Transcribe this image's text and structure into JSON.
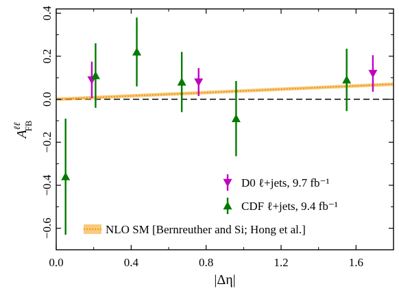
{
  "chart_data": {
    "type": "scatter",
    "xlabel": "|Δη|",
    "ylabel": "A",
    "ylabel_sup": "ℓℓ",
    "ylabel_sub": "FB",
    "xlim": [
      0.0,
      1.8
    ],
    "ylim": [
      -0.7,
      0.42
    ],
    "xticks": [
      0.0,
      0.4,
      0.8,
      1.2,
      1.6
    ],
    "xtick_labels": [
      "0.0",
      "0.4",
      "0.8",
      "1.2",
      "1.6"
    ],
    "yticks": [
      -0.6,
      -0.4,
      -0.2,
      0.0,
      0.2,
      0.4
    ],
    "ytick_labels": [
      "−0.6",
      "−0.4",
      "−0.2",
      "0.0",
      "0.2",
      "0.4"
    ],
    "grid": false,
    "reference_line": {
      "y": 0.0,
      "style": "dashed"
    },
    "legend_position": "lower-right",
    "series": [
      {
        "name": "D0 ℓ+jets, 9.7 fb⁻¹",
        "marker": "triangle-down",
        "color": "#c000c0",
        "points": [
          {
            "x": 0.19,
            "y": 0.09,
            "err": 0.085
          },
          {
            "x": 0.76,
            "y": 0.08,
            "err": 0.065
          },
          {
            "x": 1.69,
            "y": 0.12,
            "err": 0.085
          }
        ]
      },
      {
        "name": "CDF ℓ+jets, 9.4 fb⁻¹",
        "marker": "triangle-up",
        "color": "#007a00",
        "points": [
          {
            "x": 0.05,
            "y": -0.36,
            "err": 0.27
          },
          {
            "x": 0.21,
            "y": 0.11,
            "err": 0.15
          },
          {
            "x": 0.43,
            "y": 0.22,
            "err": 0.16
          },
          {
            "x": 0.67,
            "y": 0.08,
            "err": 0.14
          },
          {
            "x": 0.96,
            "y": -0.09,
            "err": 0.175
          },
          {
            "x": 1.55,
            "y": 0.09,
            "err": 0.145
          }
        ]
      }
    ],
    "band": {
      "name": "NLO SM [Bernreuther and Si; Hong et al.]",
      "color": "#f5a623",
      "points": [
        {
          "x": 0.0,
          "y": 0.0
        },
        {
          "x": 1.8,
          "y": 0.07
        }
      ]
    }
  }
}
